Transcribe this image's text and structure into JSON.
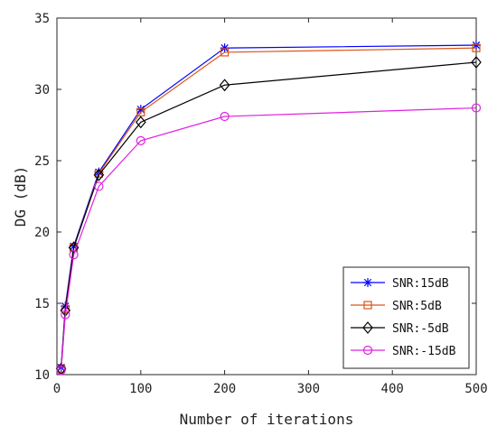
{
  "chart_data": {
    "type": "line",
    "title": "",
    "xlabel": "Number of iterations",
    "ylabel": "DG (dB)",
    "x": [
      5,
      10,
      20,
      50,
      100,
      200,
      500
    ],
    "xlim": [
      0,
      500
    ],
    "ylim": [
      10,
      35
    ],
    "xticks": [
      "0",
      "100",
      "200",
      "300",
      "400",
      "500"
    ],
    "yticks": [
      "10",
      "15",
      "20",
      "25",
      "30",
      "35"
    ],
    "grid": false,
    "legend_position": "bottom-right",
    "series": [
      {
        "name": "SNR:15dB",
        "marker": "asterisk",
        "color": "#0000ff",
        "values": [
          10.5,
          14.8,
          19.0,
          24.2,
          28.6,
          32.9,
          33.1
        ]
      },
      {
        "name": "SNR:5dB",
        "marker": "square",
        "color": "#d95319",
        "values": [
          10.4,
          14.6,
          18.9,
          24.1,
          28.4,
          32.6,
          32.9
        ]
      },
      {
        "name": "SNR:-5dB",
        "marker": "diamond",
        "color": "#000000",
        "values": [
          10.4,
          14.5,
          18.9,
          24.0,
          27.7,
          30.3,
          31.9
        ]
      },
      {
        "name": "SNR:-15dB",
        "marker": "circle",
        "color": "#e020e0",
        "values": [
          10.3,
          14.2,
          18.4,
          23.2,
          26.4,
          28.1,
          28.7
        ]
      }
    ]
  }
}
